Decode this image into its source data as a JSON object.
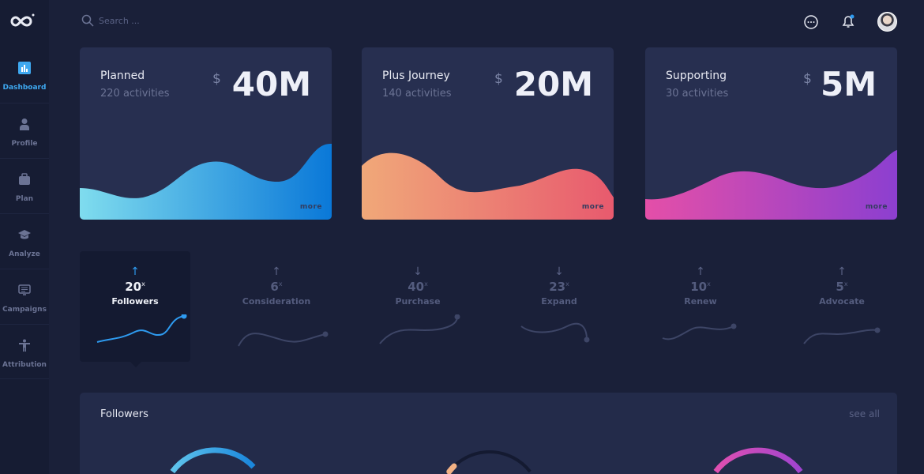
{
  "sidebar": {
    "items": [
      {
        "label": "Dashboard",
        "icon": "bar-chart-icon",
        "active": true
      },
      {
        "label": "Profile",
        "icon": "user-icon"
      },
      {
        "label": "Plan",
        "icon": "briefcase-icon"
      },
      {
        "label": "Analyze",
        "icon": "graduation-cap-icon"
      },
      {
        "label": "Campaigns",
        "icon": "message-board-icon"
      },
      {
        "label": "Attribution",
        "icon": "person-icon"
      }
    ]
  },
  "search": {
    "placeholder": "Search ..."
  },
  "cards": [
    {
      "title": "Planned",
      "subtitle": "220 activities",
      "currency": "$",
      "amount": "40M",
      "more": "more",
      "colors": [
        "#7fdcee",
        "#0a78d8"
      ]
    },
    {
      "title": "Plus Journey",
      "subtitle": "140 activities",
      "currency": "$",
      "amount": "20M",
      "more": "more",
      "colors": [
        "#f0a879",
        "#e85a6e"
      ]
    },
    {
      "title": "Supporting",
      "subtitle": "30 activities",
      "currency": "$",
      "amount": "5M",
      "more": "more",
      "colors": [
        "#e44fa8",
        "#8c3fd0"
      ]
    }
  ],
  "metrics": [
    {
      "arrow": "↑",
      "value": "20",
      "unit": "x",
      "label": "Followers",
      "active": true
    },
    {
      "arrow": "↑",
      "value": "6",
      "unit": "x",
      "label": "Consideration"
    },
    {
      "arrow": "↓",
      "value": "40",
      "unit": "x",
      "label": "Purchase"
    },
    {
      "arrow": "↓",
      "value": "23",
      "unit": "x",
      "label": "Expand"
    },
    {
      "arrow": "↑",
      "value": "10",
      "unit": "x",
      "label": "Renew"
    },
    {
      "arrow": "↑",
      "value": "5",
      "unit": "x",
      "label": "Advocate"
    }
  ],
  "followers": {
    "title": "Followers",
    "see_all": "see all"
  },
  "colors": {
    "accent": "#2e9bf0",
    "background": "#1a2039",
    "card": "#272f50"
  }
}
